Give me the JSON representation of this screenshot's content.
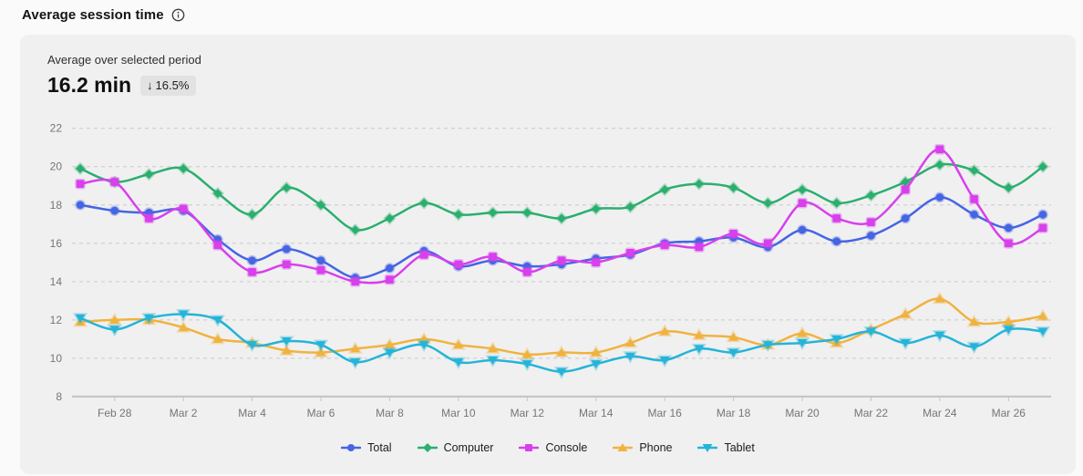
{
  "header": {
    "title": "Average session time"
  },
  "summary": {
    "label": "Average over selected period",
    "value": "16.2 min",
    "delta_arrow": "↓",
    "delta": "16.5%"
  },
  "chart_data": {
    "type": "line",
    "title": "Average session time",
    "xlabel": "",
    "ylabel": "",
    "ylim": [
      8,
      22
    ],
    "yticks": [
      8,
      10,
      12,
      14,
      16,
      18,
      20,
      22
    ],
    "grid": "horizontal-dashed",
    "legend_position": "bottom",
    "x": [
      "Feb 27",
      "Feb 28",
      "Mar 1",
      "Mar 2",
      "Mar 3",
      "Mar 4",
      "Mar 5",
      "Mar 6",
      "Mar 7",
      "Mar 8",
      "Mar 9",
      "Mar 10",
      "Mar 11",
      "Mar 12",
      "Mar 13",
      "Mar 14",
      "Mar 15",
      "Mar 16",
      "Mar 17",
      "Mar 18",
      "Mar 19",
      "Mar 20",
      "Mar 21",
      "Mar 22",
      "Mar 23",
      "Mar 24",
      "Mar 25",
      "Mar 26",
      "Mar 27"
    ],
    "x_tick_labels": [
      "Feb 28",
      "Mar 2",
      "Mar 4",
      "Mar 6",
      "Mar 8",
      "Mar 10",
      "Mar 12",
      "Mar 14",
      "Mar 16",
      "Mar 18",
      "Mar 20",
      "Mar 22",
      "Mar 24",
      "Mar 26"
    ],
    "series": [
      {
        "name": "Total",
        "color": "#4665e3",
        "marker": "circle",
        "values": [
          18.0,
          17.7,
          17.6,
          17.7,
          16.2,
          15.1,
          15.7,
          15.1,
          14.2,
          14.7,
          15.6,
          14.8,
          15.1,
          14.8,
          14.9,
          15.2,
          15.4,
          16.0,
          16.1,
          16.3,
          15.8,
          16.7,
          16.1,
          16.4,
          17.3,
          18.4,
          17.5,
          16.8,
          17.5
        ]
      },
      {
        "name": "Computer",
        "color": "#2aaf6e",
        "marker": "diamond",
        "values": [
          19.9,
          19.2,
          19.6,
          19.9,
          18.6,
          17.5,
          18.9,
          18.0,
          16.7,
          17.3,
          18.1,
          17.5,
          17.6,
          17.6,
          17.3,
          17.8,
          17.9,
          18.8,
          19.1,
          18.9,
          18.1,
          18.8,
          18.1,
          18.5,
          19.2,
          20.1,
          19.8,
          18.9,
          20.0
        ]
      },
      {
        "name": "Console",
        "color": "#d840ec",
        "marker": "square",
        "values": [
          19.1,
          19.2,
          17.3,
          17.8,
          15.9,
          14.5,
          14.9,
          14.6,
          14.0,
          14.1,
          15.4,
          14.9,
          15.3,
          14.5,
          15.1,
          15.0,
          15.5,
          15.9,
          15.8,
          16.5,
          16.0,
          18.1,
          17.3,
          17.1,
          18.8,
          20.9,
          18.3,
          16.0,
          16.8
        ]
      },
      {
        "name": "Phone",
        "color": "#f0b33f",
        "marker": "triangle-up",
        "values": [
          11.9,
          12.0,
          12.0,
          11.6,
          11.0,
          10.8,
          10.4,
          10.3,
          10.5,
          10.7,
          11.0,
          10.7,
          10.5,
          10.2,
          10.3,
          10.3,
          10.8,
          11.4,
          11.2,
          11.1,
          10.7,
          11.3,
          10.8,
          11.5,
          12.3,
          13.1,
          11.9,
          11.9,
          12.2
        ]
      },
      {
        "name": "Tablet",
        "color": "#25b4d8",
        "marker": "triangle-down",
        "values": [
          12.1,
          11.5,
          12.1,
          12.3,
          12.0,
          10.7,
          10.9,
          10.7,
          9.8,
          10.3,
          10.7,
          9.8,
          9.9,
          9.7,
          9.3,
          9.7,
          10.1,
          9.9,
          10.5,
          10.3,
          10.7,
          10.8,
          11.0,
          11.4,
          10.8,
          11.2,
          10.6,
          11.5,
          11.4
        ]
      }
    ],
    "axis_colors": {
      "grid": "#c9c9cb",
      "axis_line": "#c3c3c5",
      "tick_text": "#757575"
    }
  }
}
